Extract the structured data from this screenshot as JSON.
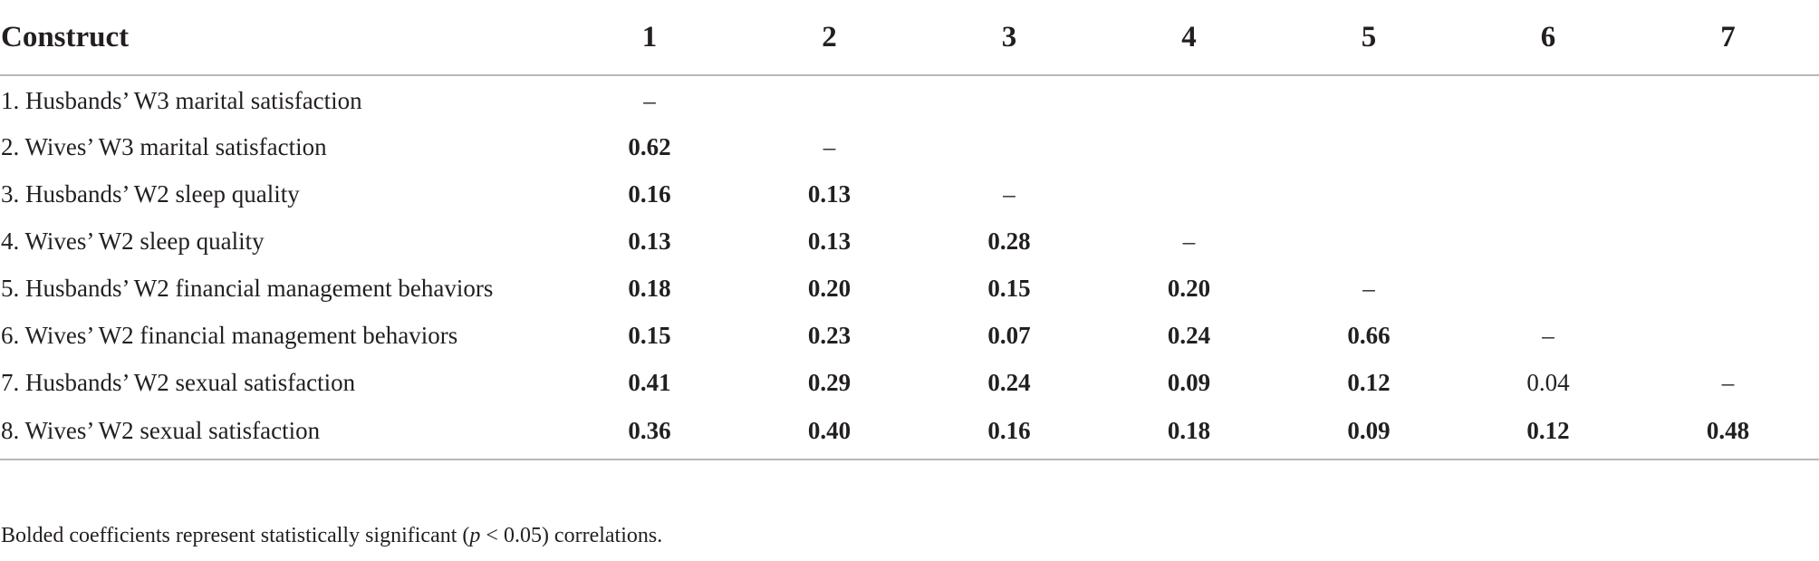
{
  "table": {
    "header": [
      "Construct",
      "1",
      "2",
      "3",
      "4",
      "5",
      "6",
      "7"
    ],
    "rows": [
      {
        "label": "1. Husbands’ W3 marital satisfaction",
        "cells": [
          {
            "v": "–",
            "b": false
          },
          {
            "v": "",
            "b": false
          },
          {
            "v": "",
            "b": false
          },
          {
            "v": "",
            "b": false
          },
          {
            "v": "",
            "b": false
          },
          {
            "v": "",
            "b": false
          },
          {
            "v": "",
            "b": false
          }
        ]
      },
      {
        "label": "2. Wives’ W3 marital satisfaction",
        "cells": [
          {
            "v": "0.62",
            "b": true
          },
          {
            "v": "–",
            "b": false
          },
          {
            "v": "",
            "b": false
          },
          {
            "v": "",
            "b": false
          },
          {
            "v": "",
            "b": false
          },
          {
            "v": "",
            "b": false
          },
          {
            "v": "",
            "b": false
          }
        ]
      },
      {
        "label": "3. Husbands’ W2 sleep quality",
        "cells": [
          {
            "v": "0.16",
            "b": true
          },
          {
            "v": "0.13",
            "b": true
          },
          {
            "v": "–",
            "b": false
          },
          {
            "v": "",
            "b": false
          },
          {
            "v": "",
            "b": false
          },
          {
            "v": "",
            "b": false
          },
          {
            "v": "",
            "b": false
          }
        ]
      },
      {
        "label": "4. Wives’ W2 sleep quality",
        "cells": [
          {
            "v": "0.13",
            "b": true
          },
          {
            "v": "0.13",
            "b": true
          },
          {
            "v": "0.28",
            "b": true
          },
          {
            "v": "–",
            "b": false
          },
          {
            "v": "",
            "b": false
          },
          {
            "v": "",
            "b": false
          },
          {
            "v": "",
            "b": false
          }
        ]
      },
      {
        "label": "5. Husbands’ W2 financial management behaviors",
        "cells": [
          {
            "v": "0.18",
            "b": true
          },
          {
            "v": "0.20",
            "b": true
          },
          {
            "v": "0.15",
            "b": true
          },
          {
            "v": "0.20",
            "b": true
          },
          {
            "v": "–",
            "b": false
          },
          {
            "v": "",
            "b": false
          },
          {
            "v": "",
            "b": false
          }
        ]
      },
      {
        "label": "6. Wives’ W2 financial management behaviors",
        "cells": [
          {
            "v": "0.15",
            "b": true
          },
          {
            "v": "0.23",
            "b": true
          },
          {
            "v": "0.07",
            "b": true
          },
          {
            "v": "0.24",
            "b": true
          },
          {
            "v": "0.66",
            "b": true
          },
          {
            "v": "–",
            "b": false
          },
          {
            "v": "",
            "b": false
          }
        ]
      },
      {
        "label": "7. Husbands’ W2 sexual satisfaction",
        "cells": [
          {
            "v": "0.41",
            "b": true
          },
          {
            "v": "0.29",
            "b": true
          },
          {
            "v": "0.24",
            "b": true
          },
          {
            "v": "0.09",
            "b": true
          },
          {
            "v": "0.12",
            "b": true
          },
          {
            "v": "0.04",
            "b": false
          },
          {
            "v": "–",
            "b": false
          }
        ]
      },
      {
        "label": "8. Wives’ W2 sexual satisfaction",
        "cells": [
          {
            "v": "0.36",
            "b": true
          },
          {
            "v": "0.40",
            "b": true
          },
          {
            "v": "0.16",
            "b": true
          },
          {
            "v": "0.18",
            "b": true
          },
          {
            "v": "0.09",
            "b": true
          },
          {
            "v": "0.12",
            "b": true
          },
          {
            "v": "0.48",
            "b": true
          }
        ]
      }
    ]
  },
  "footnote": {
    "before": "Bolded coefficients represent statistically significant (",
    "italic": "p",
    "after": " < 0.05) correlations."
  }
}
